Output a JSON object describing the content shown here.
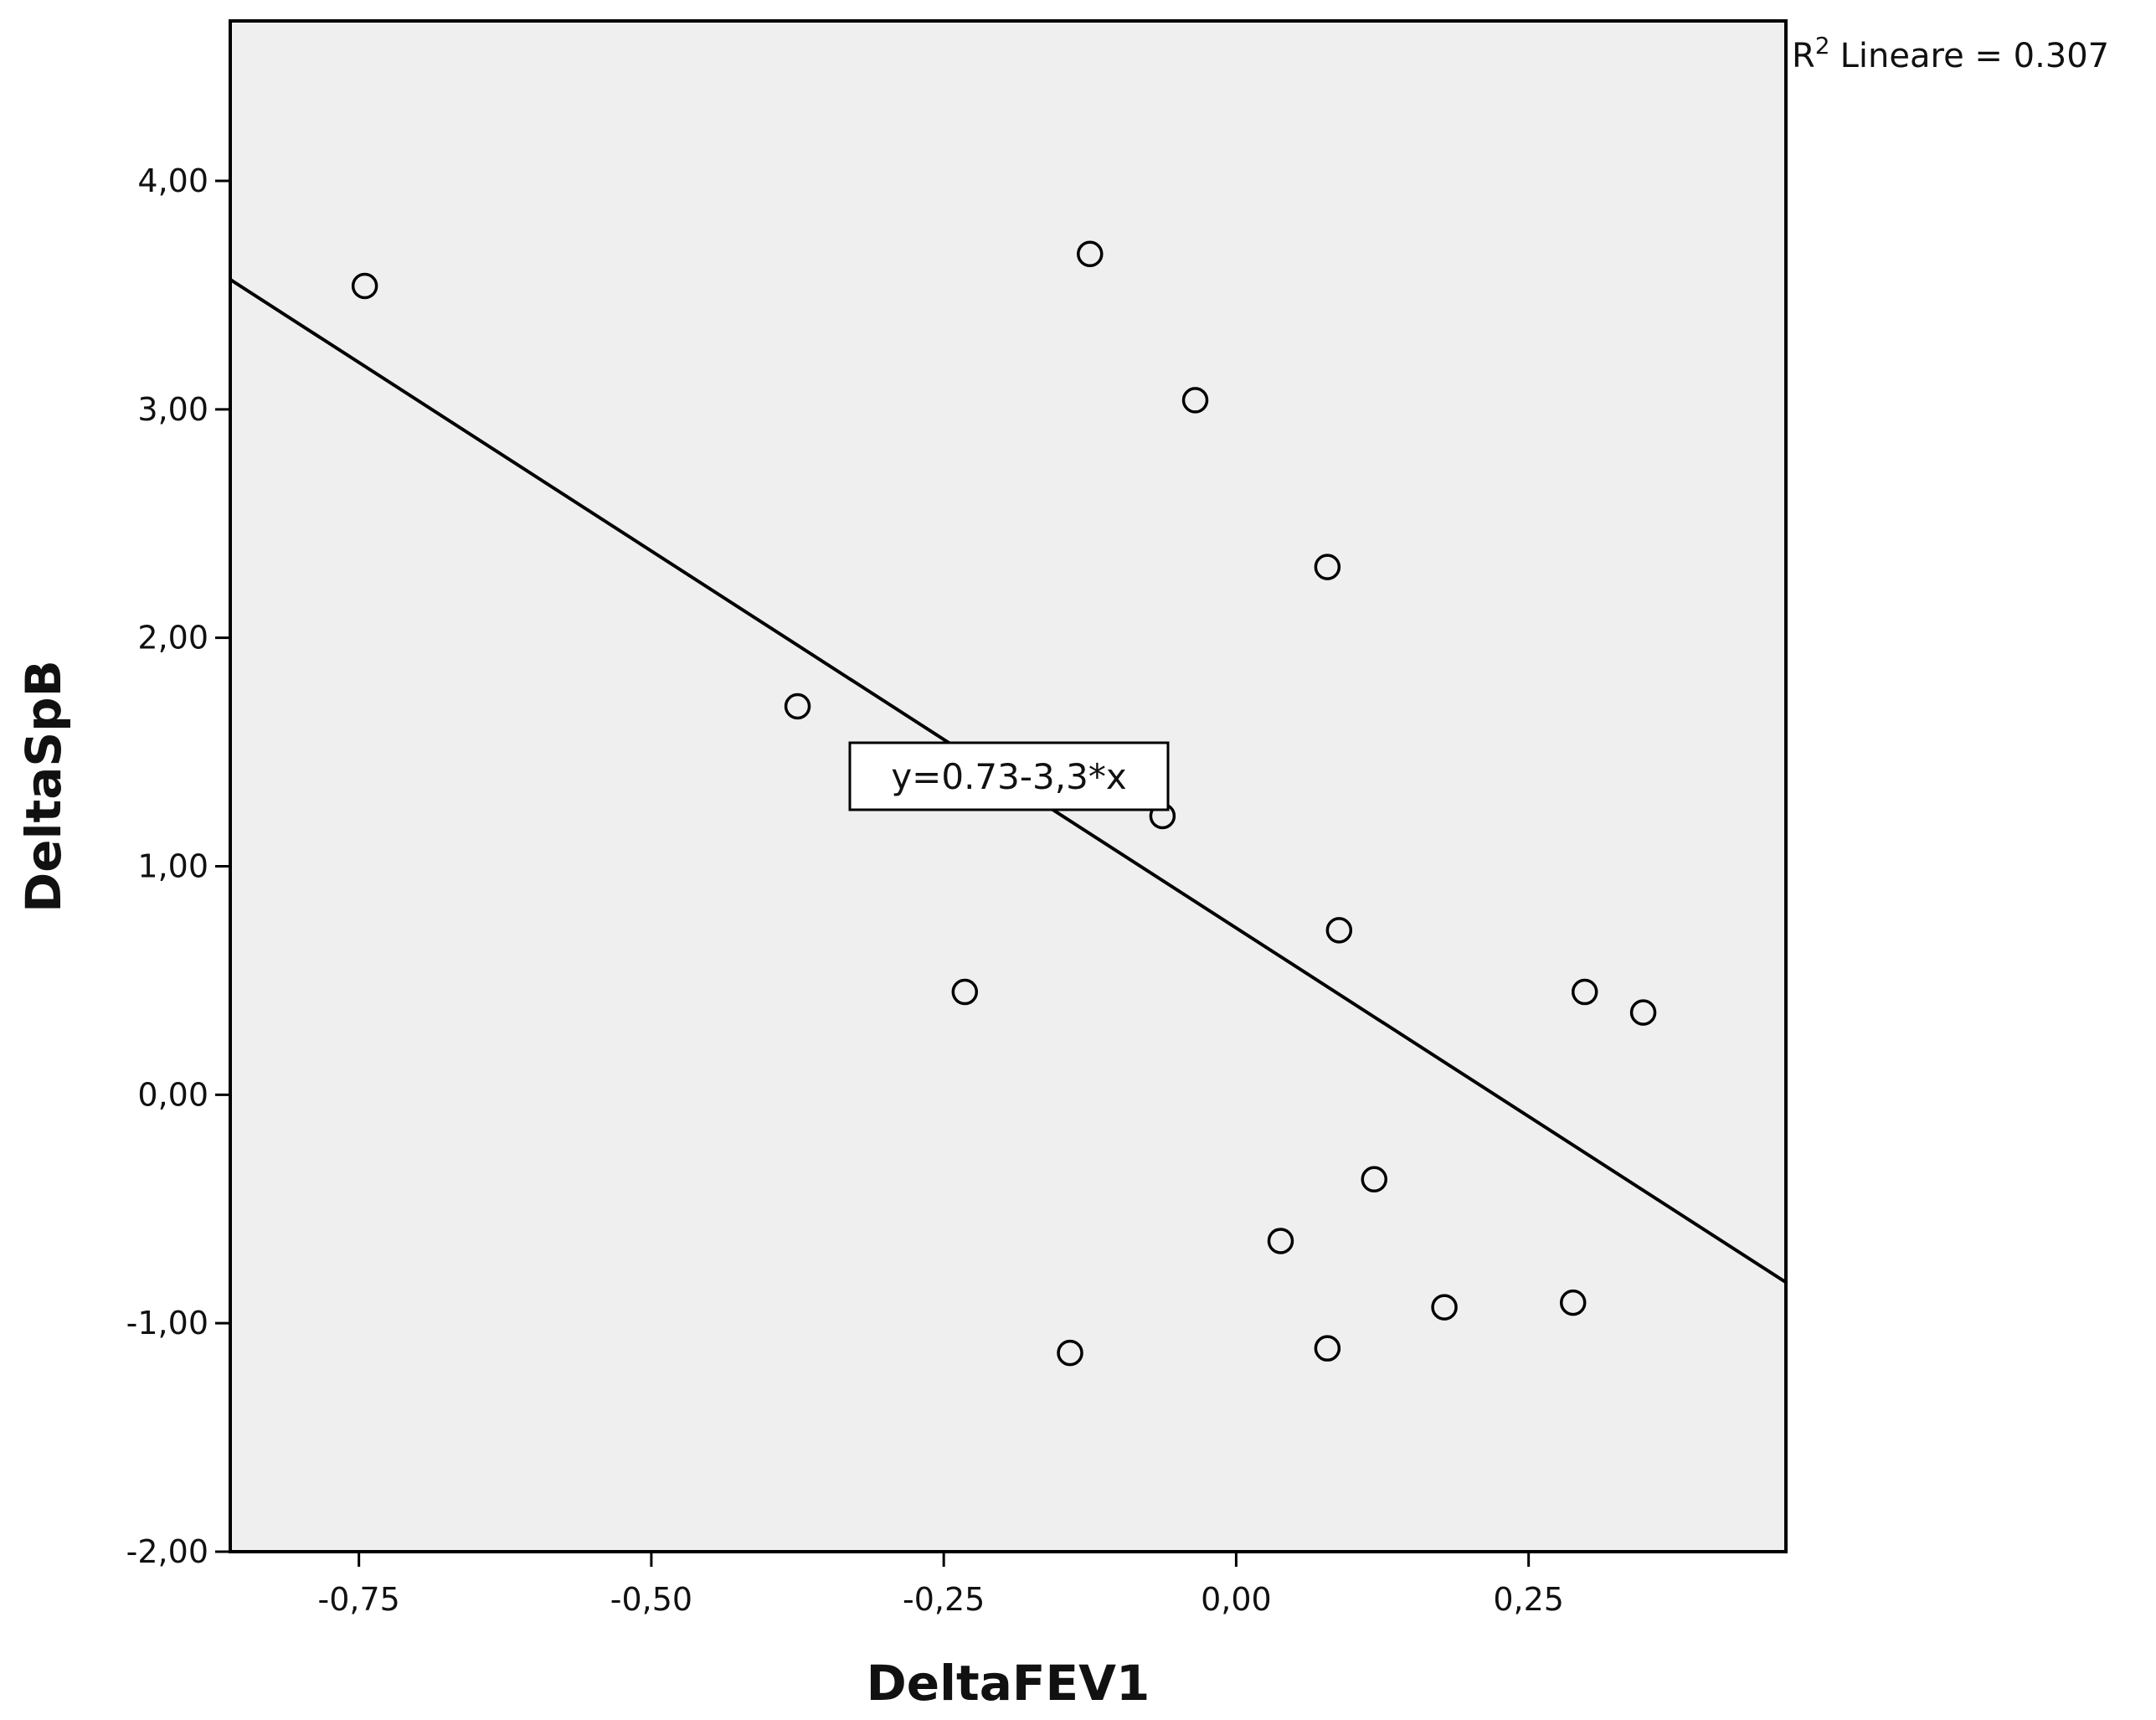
{
  "chart_data": {
    "type": "scatter",
    "xlabel": "DeltaFEV1",
    "ylabel": "DeltaSpB",
    "xlim": [
      -0.86,
      0.47
    ],
    "ylim": [
      -2.0,
      4.7
    ],
    "x_ticks": [
      -0.75,
      -0.5,
      -0.25,
      0.0,
      0.25
    ],
    "x_tick_labels": [
      "-0,75",
      "-0,50",
      "-0,25",
      "0,00",
      "0,25"
    ],
    "y_ticks": [
      -2,
      -1,
      0,
      1,
      2,
      3,
      4
    ],
    "y_tick_labels": [
      "-2,00",
      "-1,00",
      "0,00",
      "1,00",
      "2,00",
      "3,00",
      "4,00"
    ],
    "grid": false,
    "background": "#efefef",
    "points": [
      {
        "x": -0.745,
        "y": 3.54
      },
      {
        "x": -0.125,
        "y": 3.68
      },
      {
        "x": -0.035,
        "y": 3.04
      },
      {
        "x": 0.078,
        "y": 2.31
      },
      {
        "x": -0.375,
        "y": 1.7
      },
      {
        "x": -0.063,
        "y": 1.22
      },
      {
        "x": 0.088,
        "y": 0.72
      },
      {
        "x": -0.232,
        "y": 0.45
      },
      {
        "x": 0.298,
        "y": 0.45
      },
      {
        "x": 0.348,
        "y": 0.36
      },
      {
        "x": 0.118,
        "y": -0.37
      },
      {
        "x": 0.038,
        "y": -0.64
      },
      {
        "x": 0.178,
        "y": -0.93
      },
      {
        "x": 0.288,
        "y": -0.91
      },
      {
        "x": -0.142,
        "y": -1.13
      },
      {
        "x": 0.078,
        "y": -1.11
      }
    ],
    "fit_line": {
      "intercept": 0.73,
      "slope": -3.3
    },
    "fit_equation": "y=0.73-3,3*x",
    "r2_label": "Lineare = 0.307",
    "r2_prefix": "R",
    "r2_sup": "2"
  }
}
